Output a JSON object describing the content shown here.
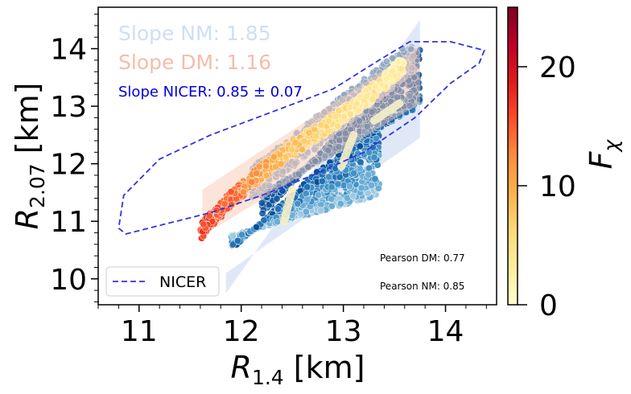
{
  "chart_data": {
    "type": "scatter",
    "xlabel_base": "R",
    "xlabel_sub": "1.4",
    "xlabel_unit": " [km]",
    "ylabel_base": "R",
    "ylabel_sub": "2.07",
    "ylabel_unit": " [km]",
    "xlim": [
      10.6,
      14.5
    ],
    "ylim": [
      9.55,
      14.72
    ],
    "xticks": [
      11,
      12,
      13,
      14
    ],
    "yticks": [
      10,
      11,
      12,
      13,
      14
    ],
    "annotations": {
      "slope_nm": "Slope NM: 1.85",
      "slope_dm": "Slope DM: 1.16",
      "slope_nicer": "Slope NICER: 0.85 ± 0.07",
      "pearson_dm": "Pearson DM: 0.77",
      "pearson_nm": "Pearson NM: 0.85"
    },
    "legend": {
      "position": "lower-left",
      "entries": [
        {
          "label": "NICER",
          "style": "dashed",
          "color": "#3333dd"
        }
      ]
    },
    "colorbar": {
      "label_base": "F",
      "label_sub": "χ",
      "range": [
        0,
        25
      ],
      "ticks": [
        0,
        10,
        20
      ],
      "colormap": [
        "#ffffcc",
        "#ffeda0",
        "#fed976",
        "#feb24c",
        "#fd8d3c",
        "#fc4e2a",
        "#e31a1c",
        "#bd0026",
        "#800026"
      ]
    },
    "colors": {
      "nm_points": "#2171b5",
      "nm_band": "#c6d6f3",
      "dm_band": "#f8c9b5",
      "nicer_contour": "#3333dd",
      "nicer_text": "#0000dd",
      "slope_nm_text": "#d0ddf7",
      "slope_dm_text": "#f5bda8"
    },
    "nicer_contour": [
      [
        10.8,
        10.88
      ],
      [
        10.87,
        10.78
      ],
      [
        11.25,
        10.95
      ],
      [
        11.7,
        11.15
      ],
      [
        12.2,
        11.45
      ],
      [
        12.7,
        11.8
      ],
      [
        13.2,
        12.2
      ],
      [
        13.7,
        12.8
      ],
      [
        14.05,
        13.4
      ],
      [
        14.33,
        13.75
      ],
      [
        14.38,
        13.97
      ],
      [
        14.05,
        14.12
      ],
      [
        13.65,
        14.12
      ],
      [
        13.35,
        13.8
      ],
      [
        12.9,
        13.3
      ],
      [
        12.3,
        12.9
      ],
      [
        11.7,
        12.5
      ],
      [
        11.2,
        12.08
      ],
      [
        10.85,
        11.45
      ],
      [
        10.8,
        10.88
      ]
    ],
    "nm_band": [
      [
        11.85,
        9.75
      ],
      [
        13.75,
        14.5
      ],
      [
        13.75,
        12.45
      ],
      [
        11.85,
        10.1
      ]
    ],
    "dm_band": [
      [
        11.62,
        11.55
      ],
      [
        13.75,
        14.05
      ],
      [
        13.75,
        13.05
      ],
      [
        11.62,
        10.75
      ]
    ],
    "nm_regions": [
      {
        "x0": 11.9,
        "x1": 13.35,
        "y0a": 10.5,
        "y0b": 10.75,
        "y1a": 12.85,
        "y1b": 11.45,
        "fx": 0.0
      },
      {
        "x0": 12.2,
        "x1": 13.75,
        "y0a": 11.1,
        "y0b": 11.5,
        "y1a": 14.05,
        "y1b": 13.0,
        "fx": 1.5
      }
    ],
    "dm_ridge": [
      {
        "x": 11.6,
        "y": 10.82,
        "f": 17
      },
      {
        "x": 11.85,
        "y": 11.3,
        "f": 15
      },
      {
        "x": 12.1,
        "y": 11.7,
        "f": 12
      },
      {
        "x": 12.4,
        "y": 12.15,
        "f": 9
      },
      {
        "x": 12.7,
        "y": 12.5,
        "f": 7
      },
      {
        "x": 13.0,
        "y": 12.85,
        "f": 5
      },
      {
        "x": 13.3,
        "y": 13.25,
        "f": 4
      },
      {
        "x": 13.6,
        "y": 13.75,
        "f": 3
      }
    ],
    "light_streaks": [
      [
        [
          12.5,
          11.55
        ],
        [
          12.42,
          11.0
        ]
      ],
      [
        [
          13.1,
          12.5
        ],
        [
          12.98,
          11.95
        ]
      ],
      [
        [
          13.55,
          13.05
        ],
        [
          13.3,
          12.75
        ]
      ]
    ]
  }
}
